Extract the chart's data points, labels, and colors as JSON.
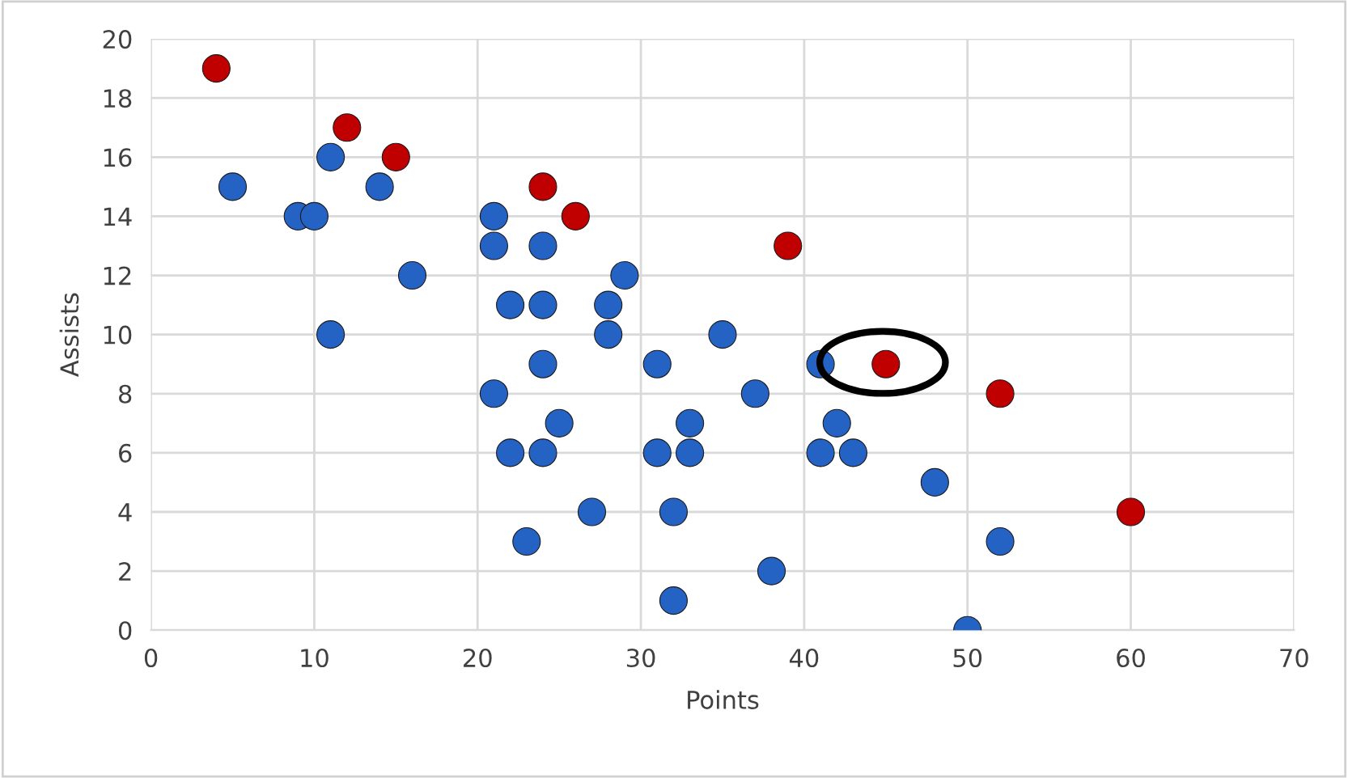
{
  "chart_data": {
    "type": "scatter",
    "xlabel": "Points",
    "ylabel": "Assists",
    "xlim": [
      0,
      70
    ],
    "xticks": [
      0,
      10,
      20,
      30,
      40,
      50,
      60,
      70
    ],
    "ylim": [
      0,
      20
    ],
    "yticks": [
      0,
      2,
      4,
      6,
      8,
      10,
      12,
      14,
      16,
      18,
      20
    ],
    "grid": true,
    "marker": "circle",
    "series": [
      {
        "color": "#2463c4",
        "x": [
          5,
          9,
          10,
          11,
          14,
          11,
          16,
          21,
          21,
          21,
          22,
          22,
          24,
          24,
          24,
          24,
          25,
          23,
          27,
          28,
          28,
          29,
          31,
          31,
          32,
          32,
          33,
          33,
          35,
          37,
          38,
          41,
          41,
          42,
          43,
          48,
          50,
          52
        ],
        "values": [
          15,
          14,
          14,
          16,
          15,
          10,
          12,
          14,
          13,
          8,
          11,
          6,
          13,
          11,
          9,
          6,
          7,
          3,
          4,
          11,
          10,
          12,
          9,
          6,
          4,
          1,
          7,
          6,
          10,
          8,
          2,
          9,
          6,
          7,
          6,
          5,
          0,
          3
        ]
      },
      {
        "color": "#c00000",
        "x": [
          4,
          12,
          15,
          24,
          26,
          39,
          45,
          52,
          60
        ],
        "values": [
          19,
          17,
          16,
          15,
          14,
          13,
          9,
          8,
          4
        ]
      }
    ]
  }
}
